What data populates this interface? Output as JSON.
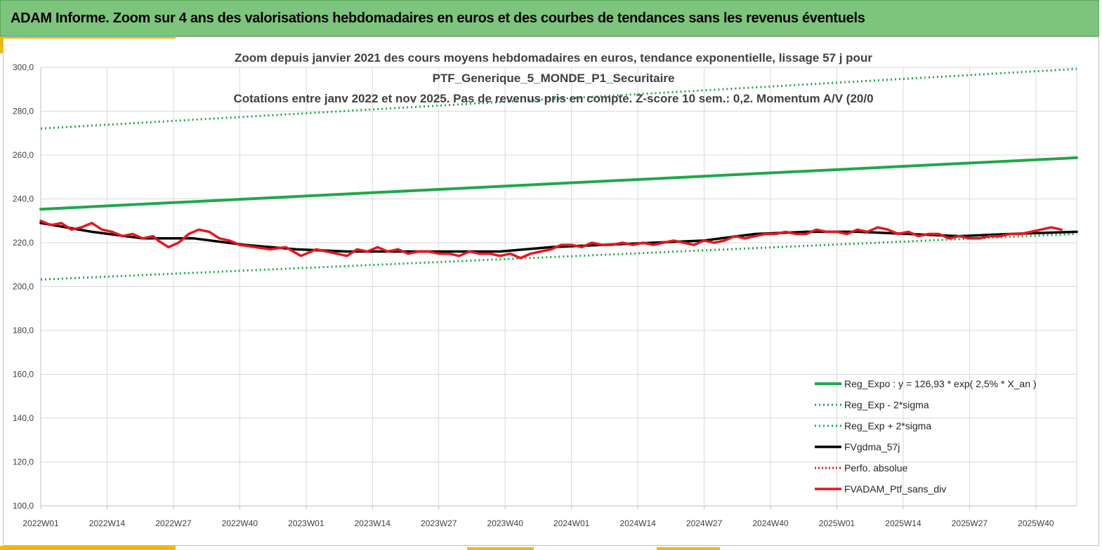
{
  "banner": {
    "title": "ADAM Informe. Zoom sur 4 ans des valorisations hebdomadaires en euros et des courbes de tendances sans les revenus éventuels"
  },
  "colors": {
    "banner_bg": "#7dc47c",
    "accent": "#f2b800",
    "trend_green": "#1ea84a",
    "price_red": "#e8161b",
    "smooth_black": "#000000",
    "grid": "#d9d9d9"
  },
  "chart_data": {
    "type": "line",
    "title": [
      "Zoom depuis janvier 2021 des cours moyens hebdomadaires  en euros, tendance exponentielle, lissage 57 j pour",
      "PTF_Generique_5_MONDE_P1_Securitaire",
      "Cotations  entre janv 2022 et nov 2025. Pas de revenus pris en compte. Z-score 10 sem.: 0,2. Momentum A/V (20/0"
    ],
    "xlabel": "",
    "ylabel": "",
    "ylim": [
      100,
      300
    ],
    "yticks": [
      "100,0",
      "120,0",
      "140,0",
      "160,0",
      "180,0",
      "200,0",
      "220,0",
      "240,0",
      "260,0",
      "280,0",
      "300,0"
    ],
    "xlim": [
      0,
      203
    ],
    "xticks": [
      {
        "i": 0,
        "label": "2022W01"
      },
      {
        "i": 13,
        "label": "2022W14"
      },
      {
        "i": 26,
        "label": "2022W27"
      },
      {
        "i": 39,
        "label": "2022W40"
      },
      {
        "i": 52,
        "label": "2023W01"
      },
      {
        "i": 65,
        "label": "2023W14"
      },
      {
        "i": 78,
        "label": "2023W27"
      },
      {
        "i": 91,
        "label": "2023W40"
      },
      {
        "i": 104,
        "label": "2024W01"
      },
      {
        "i": 117,
        "label": "2024W14"
      },
      {
        "i": 130,
        "label": "2024W27"
      },
      {
        "i": 143,
        "label": "2024W40"
      },
      {
        "i": 156,
        "label": "2025W01"
      },
      {
        "i": 169,
        "label": "2025W14"
      },
      {
        "i": 182,
        "label": "2025W27"
      },
      {
        "i": 195,
        "label": "2025W40"
      }
    ],
    "grid": true,
    "legend_position": "bottom-right",
    "series": [
      {
        "name": "Reg_Expo : y = 126,93 * exp( 2,5% *  X_an )",
        "style": "solid-green",
        "x": [
          0,
          203
        ],
        "values": [
          235.3,
          258.8
        ]
      },
      {
        "name": "Reg_Exp - 2*sigma",
        "style": "dotted-green",
        "x": [
          0,
          203
        ],
        "values": [
          203.2,
          224.0
        ]
      },
      {
        "name": "Reg_Exp + 2*sigma",
        "style": "dotted-green",
        "x": [
          0,
          203
        ],
        "values": [
          272.1,
          299.3
        ]
      },
      {
        "name": "FVgdma_57j",
        "style": "solid-black",
        "x": [
          0,
          10,
          20,
          30,
          40,
          50,
          60,
          70,
          80,
          90,
          100,
          110,
          120,
          130,
          140,
          150,
          160,
          170,
          180,
          190,
          203
        ],
        "values": [
          229,
          225,
          222,
          222,
          219,
          217,
          216,
          216,
          216,
          216,
          218,
          219,
          220,
          221,
          224,
          225,
          225,
          224,
          223,
          224,
          225
        ]
      },
      {
        "name": "Perfo. absolue",
        "style": "dotted-red",
        "x": [],
        "values": []
      },
      {
        "name": "FVADAM_Ptf_sans_div",
        "style": "solid-red",
        "x": [
          0,
          2,
          4,
          6,
          8,
          10,
          12,
          14,
          16,
          18,
          20,
          22,
          23,
          25,
          27,
          29,
          31,
          33,
          35,
          37,
          39,
          42,
          45,
          48,
          51,
          54,
          56,
          58,
          60,
          62,
          64,
          66,
          68,
          70,
          72,
          74,
          76,
          78,
          80,
          82,
          84,
          86,
          88,
          90,
          92,
          94,
          96,
          98,
          100,
          102,
          104,
          106,
          108,
          110,
          112,
          114,
          116,
          118,
          120,
          122,
          124,
          126,
          128,
          130,
          132,
          134,
          136,
          138,
          140,
          142,
          144,
          146,
          148,
          150,
          152,
          154,
          156,
          158,
          160,
          162,
          164,
          166,
          168,
          170,
          172,
          174,
          176,
          178,
          180,
          182,
          184,
          186,
          188,
          190,
          192,
          194,
          196,
          198,
          200
        ],
        "values": [
          230,
          228,
          229,
          226,
          227,
          229,
          226,
          225,
          223,
          224,
          222,
          223,
          221,
          218,
          220,
          224,
          226,
          225,
          222,
          221,
          219,
          218,
          217,
          218,
          214,
          217,
          216,
          215,
          214,
          217,
          216,
          218,
          216,
          217,
          215,
          216,
          216,
          215,
          215,
          214,
          216,
          215,
          215,
          214,
          215,
          213,
          215,
          216,
          217,
          219,
          219,
          218,
          220,
          219,
          219,
          220,
          219,
          220,
          219,
          220,
          221,
          220,
          219,
          221,
          220,
          221,
          223,
          222,
          223,
          224,
          224,
          225,
          224,
          224,
          226,
          225,
          225,
          224,
          226,
          225,
          227,
          226,
          224,
          225,
          223,
          224,
          224,
          222,
          223,
          222,
          222,
          223,
          223,
          224,
          224,
          225,
          226,
          227,
          226
        ]
      }
    ]
  }
}
